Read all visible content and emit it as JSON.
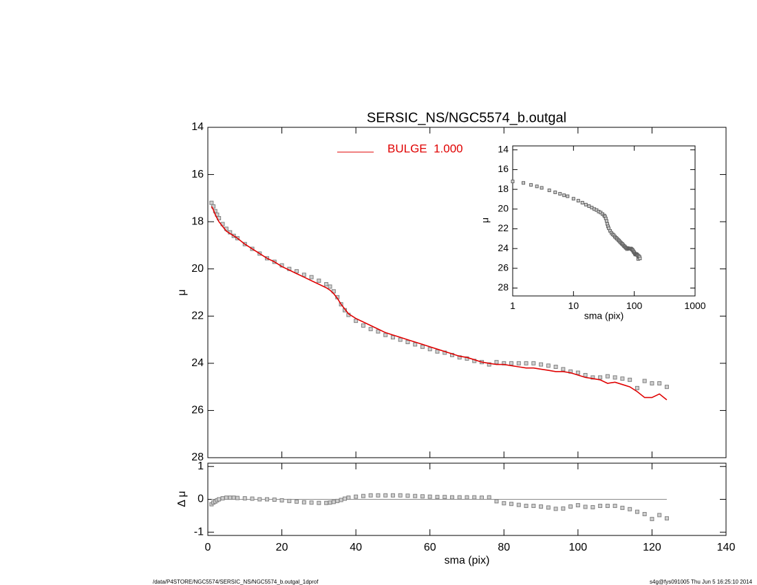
{
  "chart_data": [
    {
      "type": "line",
      "title": "SERSIC_NS/NGC5574_b.outgal",
      "ylabel": "μ",
      "xlim": [
        0,
        140
      ],
      "xticks": [
        0,
        20,
        40,
        60,
        80,
        100,
        120,
        140
      ],
      "show_xticklabels": false,
      "ylim": [
        14,
        28
      ],
      "yticks": [
        14,
        16,
        18,
        20,
        22,
        24,
        26,
        28
      ],
      "yreverse": true,
      "x": [
        1,
        1.5,
        2,
        2.5,
        3,
        4,
        5,
        6,
        7,
        8,
        10,
        12,
        14,
        16,
        18,
        20,
        22,
        24,
        26,
        28,
        30,
        32,
        33,
        34,
        35,
        36,
        37,
        38,
        40,
        42,
        44,
        46,
        48,
        50,
        52,
        54,
        56,
        58,
        60,
        62,
        64,
        66,
        68,
        70,
        72,
        74,
        76,
        78,
        80,
        82,
        84,
        86,
        88,
        90,
        92,
        94,
        96,
        98,
        100,
        102,
        104,
        106,
        108,
        110,
        112,
        114,
        116,
        118,
        120,
        122,
        124
      ],
      "series": [
        {
          "style": "markers",
          "color": "#808080",
          "values": [
            17.2,
            17.35,
            17.55,
            17.7,
            17.85,
            18.1,
            18.3,
            18.45,
            18.6,
            18.7,
            18.95,
            19.15,
            19.35,
            19.55,
            19.7,
            19.85,
            20.0,
            20.1,
            20.25,
            20.35,
            20.5,
            20.65,
            20.75,
            20.95,
            21.2,
            21.5,
            21.75,
            21.95,
            22.2,
            22.4,
            22.55,
            22.65,
            22.8,
            22.9,
            23.0,
            23.1,
            23.2,
            23.3,
            23.4,
            23.5,
            23.55,
            23.65,
            23.75,
            23.8,
            23.9,
            23.95,
            24.05,
            23.95,
            24.0,
            24.0,
            24.0,
            24.0,
            24.0,
            24.05,
            24.1,
            24.15,
            24.25,
            24.35,
            24.4,
            24.5,
            24.6,
            24.6,
            24.55,
            24.6,
            24.65,
            24.7,
            25.05,
            24.75,
            24.85,
            24.85,
            25.0
          ]
        },
        {
          "style": "line",
          "name": "BULGE  1.000",
          "color": "#e00000",
          "values": [
            17.35,
            17.5,
            17.7,
            17.85,
            18.0,
            18.2,
            18.4,
            18.5,
            18.6,
            18.7,
            18.95,
            19.15,
            19.35,
            19.55,
            19.7,
            19.9,
            20.05,
            20.2,
            20.35,
            20.5,
            20.65,
            20.8,
            20.9,
            21.05,
            21.25,
            21.5,
            21.7,
            21.9,
            22.1,
            22.25,
            22.4,
            22.55,
            22.7,
            22.8,
            22.9,
            23.0,
            23.1,
            23.2,
            23.3,
            23.4,
            23.5,
            23.6,
            23.7,
            23.75,
            23.85,
            23.95,
            24.0,
            24.05,
            24.05,
            24.1,
            24.15,
            24.2,
            24.2,
            24.25,
            24.3,
            24.35,
            24.35,
            24.4,
            24.5,
            24.6,
            24.65,
            24.7,
            24.85,
            24.8,
            24.9,
            25.0,
            25.2,
            25.45,
            25.45,
            25.3,
            25.55
          ]
        }
      ]
    },
    {
      "type": "scatter",
      "xlabel": "sma (pix)",
      "ylabel": "Δ μ",
      "xlim": [
        0,
        140
      ],
      "xticks": [
        0,
        20,
        40,
        60,
        80,
        100,
        120,
        140
      ],
      "show_xticklabels": true,
      "ylim": [
        -1.1,
        1.1
      ],
      "yticks": [
        -1,
        0,
        1
      ],
      "zero_line": true,
      "x": [
        1,
        1.5,
        2,
        2.5,
        3,
        4,
        5,
        6,
        7,
        8,
        10,
        12,
        14,
        16,
        18,
        20,
        22,
        24,
        26,
        28,
        30,
        32,
        33,
        34,
        35,
        36,
        37,
        38,
        40,
        42,
        44,
        46,
        48,
        50,
        52,
        54,
        56,
        58,
        60,
        62,
        64,
        66,
        68,
        70,
        72,
        74,
        76,
        78,
        80,
        82,
        84,
        86,
        88,
        90,
        92,
        94,
        96,
        98,
        100,
        102,
        104,
        106,
        108,
        110,
        112,
        114,
        116,
        118,
        120,
        122,
        124
      ],
      "series": [
        {
          "style": "markers",
          "color": "#808080",
          "values": [
            -0.15,
            -0.1,
            -0.07,
            -0.03,
            0,
            0.03,
            0.05,
            0.05,
            0.05,
            0.04,
            0.03,
            0.02,
            0,
            0,
            -0.01,
            -0.03,
            -0.05,
            -0.07,
            -0.09,
            -0.1,
            -0.11,
            -0.11,
            -0.1,
            -0.08,
            -0.05,
            -0.02,
            0.02,
            0.05,
            0.08,
            0.1,
            0.12,
            0.12,
            0.12,
            0.12,
            0.12,
            0.11,
            0.1,
            0.09,
            0.08,
            0.07,
            0.07,
            0.06,
            0.06,
            0.06,
            0.06,
            0.05,
            0.06,
            -0.06,
            -0.12,
            -0.14,
            -0.17,
            -0.2,
            -0.2,
            -0.22,
            -0.25,
            -0.29,
            -0.28,
            -0.22,
            -0.18,
            -0.23,
            -0.24,
            -0.2,
            -0.2,
            -0.2,
            -0.26,
            -0.3,
            -0.38,
            -0.45,
            -0.6,
            -0.48,
            -0.58
          ]
        }
      ]
    },
    {
      "type": "scatter",
      "xlabel": "sma (pix)",
      "ylabel": "μ",
      "xlog": true,
      "xlim": [
        1,
        1000
      ],
      "xticks": [
        1,
        10,
        100,
        1000
      ],
      "show_xticklabels": true,
      "ylim": [
        13.6,
        28.8
      ],
      "yticks": [
        14,
        16,
        18,
        20,
        22,
        24,
        26,
        28
      ],
      "yreverse": true,
      "x": [
        1,
        1.5,
        2,
        2.5,
        3,
        4,
        5,
        6,
        7,
        8,
        10,
        12,
        14,
        16,
        18,
        20,
        22,
        24,
        26,
        28,
        30,
        32,
        33,
        34,
        35,
        36,
        37,
        38,
        40,
        42,
        44,
        46,
        48,
        50,
        52,
        54,
        56,
        58,
        60,
        62,
        64,
        66,
        68,
        70,
        72,
        74,
        76,
        78,
        80,
        82,
        84,
        86,
        88,
        90,
        92,
        94,
        96,
        98,
        100,
        102,
        104,
        106,
        108,
        110,
        112,
        114,
        116,
        118,
        120,
        122,
        124
      ],
      "series": [
        {
          "style": "markers",
          "color": "#606060",
          "values": [
            17.2,
            17.35,
            17.55,
            17.7,
            17.85,
            18.1,
            18.3,
            18.45,
            18.6,
            18.7,
            18.95,
            19.15,
            19.35,
            19.55,
            19.7,
            19.85,
            20.0,
            20.1,
            20.25,
            20.35,
            20.5,
            20.65,
            20.75,
            20.95,
            21.2,
            21.5,
            21.75,
            21.95,
            22.2,
            22.4,
            22.55,
            22.65,
            22.8,
            22.9,
            23.0,
            23.1,
            23.2,
            23.3,
            23.4,
            23.5,
            23.55,
            23.65,
            23.75,
            23.8,
            23.9,
            23.95,
            24.05,
            23.95,
            24.0,
            24.0,
            24.0,
            24.0,
            24.0,
            24.05,
            24.1,
            24.15,
            24.25,
            24.35,
            24.4,
            24.5,
            24.6,
            24.6,
            24.55,
            24.6,
            24.65,
            24.7,
            25.05,
            24.75,
            24.85,
            24.85,
            25.0
          ]
        }
      ]
    }
  ],
  "footer": {
    "left": "/data/P4STORE/NGC5574/SERSIC_NS/NGC5574_b.outgal_1dprof",
    "right": "s4g@fys091005  Thu Jun  5 16:25:10 2014"
  }
}
